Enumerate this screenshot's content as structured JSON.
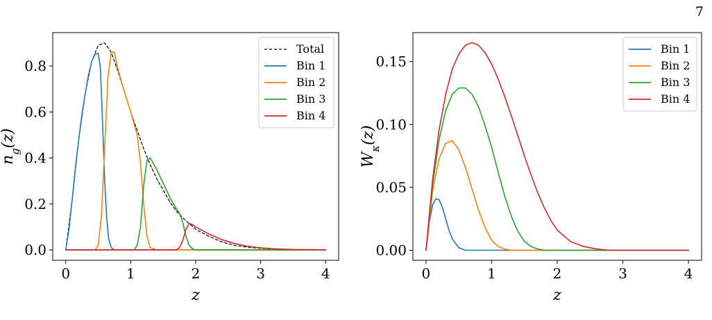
{
  "page": {
    "number": "7"
  },
  "colors": {
    "bin1": "#1f77b4",
    "bin2": "#ff7f0e",
    "bin3": "#2ca02c",
    "bin4": "#d62728",
    "total": "#000000"
  },
  "chart_data": [
    {
      "type": "line",
      "xlabel": "z",
      "ylabel": "n_g(z)",
      "xlim": [
        -0.2,
        4.2
      ],
      "ylim": [
        -0.045,
        0.945
      ],
      "xticks": [
        0,
        1,
        2,
        3,
        4
      ],
      "xtick_labels": [
        "0",
        "1",
        "2",
        "3",
        "4"
      ],
      "yticks": [
        0.0,
        0.2,
        0.4,
        0.6,
        0.8
      ],
      "ytick_labels": [
        "0.0",
        "0.2",
        "0.4",
        "0.6",
        "0.8"
      ],
      "legend": {
        "position": "top-right",
        "entries": [
          "Total",
          "Bin 1",
          "Bin 2",
          "Bin 3",
          "Bin 4"
        ]
      },
      "grid": false,
      "series": [
        {
          "name": "Total",
          "style": "dashed",
          "color_key": "total",
          "x": [
            0.0,
            0.1,
            0.2,
            0.3,
            0.4,
            0.5,
            0.6,
            0.7,
            0.8,
            0.9,
            1.0,
            1.1,
            1.2,
            1.3,
            1.4,
            1.5,
            1.6,
            1.7,
            1.8,
            1.9,
            2.0,
            2.2,
            2.4,
            2.6,
            2.8,
            3.0,
            3.2,
            3.5,
            4.0
          ],
          "y": [
            0.0,
            0.22,
            0.48,
            0.68,
            0.82,
            0.89,
            0.9,
            0.86,
            0.78,
            0.69,
            0.6,
            0.52,
            0.44,
            0.37,
            0.31,
            0.26,
            0.21,
            0.17,
            0.14,
            0.115,
            0.09,
            0.06,
            0.035,
            0.02,
            0.012,
            0.007,
            0.004,
            0.002,
            0.001
          ]
        },
        {
          "name": "Bin 1",
          "style": "solid",
          "color_key": "bin1",
          "x": [
            0.0,
            0.05,
            0.1,
            0.15,
            0.2,
            0.25,
            0.3,
            0.35,
            0.4,
            0.45,
            0.5,
            0.53,
            0.55,
            0.58,
            0.6,
            0.63,
            0.66,
            0.7,
            0.75,
            4.0
          ],
          "y": [
            0.0,
            0.09,
            0.22,
            0.36,
            0.48,
            0.59,
            0.68,
            0.76,
            0.82,
            0.85,
            0.855,
            0.8,
            0.68,
            0.45,
            0.3,
            0.14,
            0.05,
            0.01,
            0.0,
            0.0
          ]
        },
        {
          "name": "Bin 2",
          "style": "solid",
          "color_key": "bin2",
          "x": [
            0.0,
            0.45,
            0.5,
            0.55,
            0.6,
            0.65,
            0.7,
            0.75,
            0.8,
            0.9,
            1.0,
            1.1,
            1.15,
            1.2,
            1.25,
            1.3,
            1.4,
            4.0
          ],
          "y": [
            0.0,
            0.0,
            0.02,
            0.15,
            0.45,
            0.75,
            0.86,
            0.86,
            0.79,
            0.69,
            0.6,
            0.5,
            0.38,
            0.2,
            0.06,
            0.01,
            0.0,
            0.0
          ]
        },
        {
          "name": "Bin 3",
          "style": "solid",
          "color_key": "bin3",
          "x": [
            0.0,
            1.05,
            1.1,
            1.15,
            1.2,
            1.25,
            1.3,
            1.4,
            1.5,
            1.6,
            1.7,
            1.75,
            1.8,
            1.85,
            1.9,
            1.95,
            2.0,
            4.0
          ],
          "y": [
            0.0,
            0.0,
            0.02,
            0.1,
            0.28,
            0.39,
            0.4,
            0.35,
            0.29,
            0.23,
            0.18,
            0.16,
            0.12,
            0.06,
            0.02,
            0.005,
            0.0,
            0.0
          ]
        },
        {
          "name": "Bin 4",
          "style": "solid",
          "color_key": "bin4",
          "x": [
            0.0,
            1.7,
            1.75,
            1.8,
            1.85,
            1.9,
            1.95,
            2.0,
            2.2,
            2.4,
            2.6,
            2.8,
            3.0,
            3.2,
            3.5,
            4.0
          ],
          "y": [
            0.0,
            0.0,
            0.01,
            0.04,
            0.09,
            0.115,
            0.11,
            0.1,
            0.07,
            0.045,
            0.028,
            0.016,
            0.009,
            0.005,
            0.002,
            0.001
          ]
        }
      ]
    },
    {
      "type": "line",
      "xlabel": "z",
      "ylabel": "W_κ(z)",
      "xlim": [
        -0.2,
        4.2
      ],
      "ylim": [
        -0.008,
        0.173
      ],
      "xticks": [
        0,
        1,
        2,
        3,
        4
      ],
      "xtick_labels": [
        "0",
        "1",
        "2",
        "3",
        "4"
      ],
      "yticks": [
        0.0,
        0.05,
        0.1,
        0.15
      ],
      "ytick_labels": [
        "0.00",
        "0.05",
        "0.10",
        "0.15"
      ],
      "legend": {
        "position": "top-right",
        "entries": [
          "Bin 1",
          "Bin 2",
          "Bin 3",
          "Bin 4"
        ]
      },
      "grid": false,
      "series": [
        {
          "name": "Bin 1",
          "style": "solid",
          "color_key": "bin1",
          "x": [
            0.0,
            0.05,
            0.1,
            0.15,
            0.2,
            0.25,
            0.3,
            0.35,
            0.4,
            0.5,
            0.6,
            0.7,
            4.0
          ],
          "y": [
            0.0,
            0.022,
            0.036,
            0.041,
            0.04,
            0.034,
            0.025,
            0.016,
            0.009,
            0.002,
            0.0,
            0.0,
            0.0
          ]
        },
        {
          "name": "Bin 2",
          "style": "solid",
          "color_key": "bin2",
          "x": [
            0.0,
            0.1,
            0.2,
            0.3,
            0.4,
            0.5,
            0.6,
            0.7,
            0.8,
            0.9,
            1.0,
            1.1,
            1.2,
            1.3,
            4.0
          ],
          "y": [
            0.0,
            0.047,
            0.073,
            0.085,
            0.087,
            0.08,
            0.066,
            0.049,
            0.032,
            0.018,
            0.008,
            0.003,
            0.001,
            0.0,
            0.0
          ]
        },
        {
          "name": "Bin 3",
          "style": "solid",
          "color_key": "bin3",
          "x": [
            0.0,
            0.1,
            0.2,
            0.3,
            0.4,
            0.5,
            0.6,
            0.7,
            0.8,
            0.9,
            1.0,
            1.1,
            1.2,
            1.3,
            1.4,
            1.5,
            1.6,
            1.7,
            1.8,
            2.0,
            4.0
          ],
          "y": [
            0.0,
            0.052,
            0.088,
            0.111,
            0.124,
            0.129,
            0.129,
            0.124,
            0.114,
            0.099,
            0.082,
            0.062,
            0.043,
            0.027,
            0.015,
            0.007,
            0.003,
            0.001,
            0.0,
            0.0,
            0.0
          ]
        },
        {
          "name": "Bin 4",
          "style": "solid",
          "color_key": "bin4",
          "x": [
            0.0,
            0.1,
            0.2,
            0.3,
            0.4,
            0.5,
            0.6,
            0.7,
            0.8,
            0.9,
            1.0,
            1.1,
            1.2,
            1.3,
            1.4,
            1.5,
            1.6,
            1.7,
            1.8,
            1.9,
            2.0,
            2.2,
            2.4,
            2.6,
            2.8,
            3.0,
            4.0
          ],
          "y": [
            0.0,
            0.056,
            0.096,
            0.124,
            0.144,
            0.156,
            0.163,
            0.165,
            0.163,
            0.157,
            0.148,
            0.136,
            0.122,
            0.107,
            0.091,
            0.075,
            0.06,
            0.046,
            0.034,
            0.024,
            0.016,
            0.007,
            0.003,
            0.001,
            0.0,
            0.0,
            0.0
          ]
        }
      ]
    }
  ]
}
